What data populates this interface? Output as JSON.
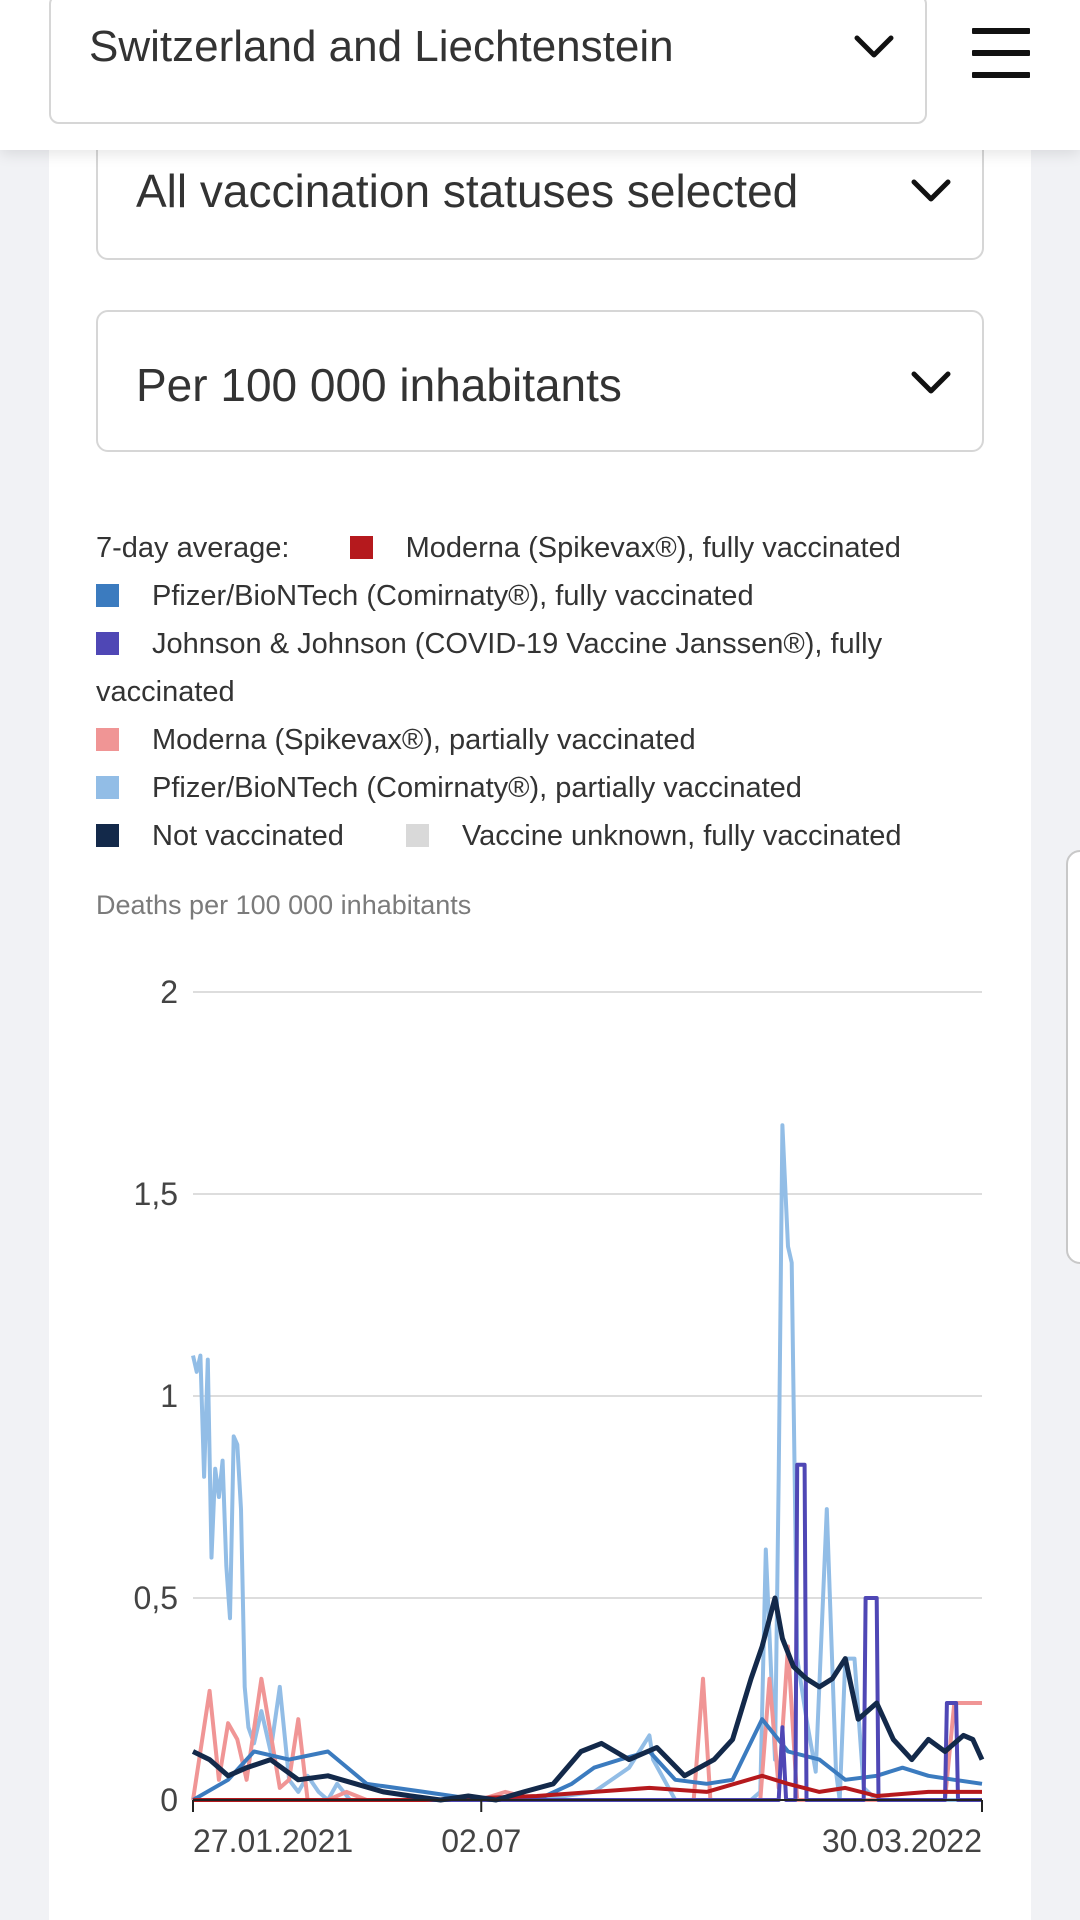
{
  "header": {
    "region_label": "Switzerland and Liechtenstein"
  },
  "filters": {
    "status_label": "All vaccination statuses selected",
    "unit_label": "Per 100 000 inhabitants"
  },
  "legend": {
    "prefix": "7-day average:",
    "items": [
      {
        "label": "Moderna (Spikevax®), fully vaccinated",
        "color": "#b5191d"
      },
      {
        "label": "Pfizer/BioNTech (Comirnaty®), fully vaccinated",
        "color": "#3b7bbf"
      },
      {
        "label": "Johnson & Johnson (COVID-19 Vaccine Janssen®), fully",
        "label_cont": "vaccinated",
        "color": "#4f47b5"
      },
      {
        "label": "Moderna (Spikevax®), partially vaccinated",
        "color": "#f09595"
      },
      {
        "label": "Pfizer/BioNTech (Comirnaty®), partially vaccinated",
        "color": "#92bde6"
      },
      {
        "label": "Not vaccinated",
        "color": "#13294a"
      },
      {
        "label": "Vaccine unknown, fully vaccinated",
        "color": "#d9d9d9"
      }
    ]
  },
  "chart_data": {
    "type": "line",
    "ylabel": "Deaths per 100 000 inhabitants",
    "ylim": [
      0,
      2
    ],
    "y_ticks": [
      "0",
      "0,5",
      "1",
      "1,5",
      "2"
    ],
    "x_tick_labels": [
      "27.01.2021",
      "02.07",
      "30.03.2022"
    ],
    "x_range": [
      "2021-01-27",
      "2022-03-30"
    ],
    "grid": true,
    "series": [
      {
        "name": "Pfizer/BioNTech (Comirnaty®), partially vaccinated",
        "color": "#92bde6",
        "x": [
          "2021-01-27",
          "2021-01-29",
          "2021-01-31",
          "2021-02-02",
          "2021-02-04",
          "2021-02-06",
          "2021-02-08",
          "2021-02-10",
          "2021-02-12",
          "2021-02-14",
          "2021-02-16",
          "2021-02-18",
          "2021-02-20",
          "2021-02-22",
          "2021-02-24",
          "2021-02-26",
          "2021-03-01",
          "2021-03-05",
          "2021-03-10",
          "2021-03-15",
          "2021-03-20",
          "2021-03-25",
          "2021-03-30",
          "2021-04-05",
          "2021-04-10",
          "2021-04-15",
          "2021-04-22",
          "2021-05-01",
          "2021-05-15",
          "2021-06-01",
          "2021-07-01",
          "2021-08-01",
          "2021-09-01",
          "2021-09-20",
          "2021-10-01",
          "2021-10-03",
          "2021-10-15",
          "2021-11-01",
          "2021-11-15",
          "2021-11-25",
          "2021-11-30",
          "2021-12-03",
          "2021-12-06",
          "2021-12-08",
          "2021-12-10",
          "2021-12-12",
          "2021-12-15",
          "2021-12-17",
          "2021-12-20",
          "2021-12-25",
          "2021-12-30",
          "2022-01-05",
          "2022-01-10",
          "2022-01-12",
          "2022-01-15",
          "2022-01-20",
          "2022-01-25",
          "2022-02-01",
          "2022-02-10",
          "2022-02-20",
          "2022-02-25",
          "2022-03-01",
          "2022-03-05",
          "2022-03-10",
          "2022-03-15",
          "2022-03-20",
          "2022-03-25",
          "2022-03-30"
        ],
        "values": [
          1.1,
          1.06,
          1.1,
          0.8,
          1.09,
          0.6,
          0.82,
          0.75,
          0.84,
          0.58,
          0.45,
          0.9,
          0.88,
          0.72,
          0.28,
          0.18,
          0.14,
          0.22,
          0.12,
          0.28,
          0.05,
          0.02,
          0.06,
          0.02,
          0.0,
          0.04,
          0.0,
          0.0,
          0.0,
          0.0,
          0.0,
          0.0,
          0.02,
          0.08,
          0.16,
          0.1,
          0.0,
          0.0,
          0.0,
          0.0,
          0.02,
          0.62,
          0.3,
          0.1,
          0.8,
          1.67,
          1.37,
          1.33,
          0.35,
          0.2,
          0.07,
          0.72,
          0.07,
          0.0,
          0.35,
          0.35,
          0.03,
          0.0,
          0.0,
          0.0,
          0.0,
          0.0,
          0.0,
          0.0,
          0.0,
          0.0,
          0.0,
          0.0
        ]
      },
      {
        "name": "Moderna (Spikevax®), partially vaccinated",
        "color": "#f09595",
        "x": [
          "2021-01-27",
          "2021-02-05",
          "2021-02-10",
          "2021-02-15",
          "2021-02-20",
          "2021-02-25",
          "2021-03-05",
          "2021-03-15",
          "2021-03-20",
          "2021-03-25",
          "2021-03-30",
          "2021-04-10",
          "2021-04-20",
          "2021-05-01",
          "2021-06-01",
          "2021-07-01",
          "2021-07-15",
          "2021-08-01",
          "2021-09-01",
          "2021-10-01",
          "2021-10-25",
          "2021-10-30",
          "2021-11-03",
          "2021-11-10",
          "2021-11-20",
          "2021-11-30",
          "2021-12-05",
          "2021-12-10",
          "2021-12-15",
          "2021-12-20",
          "2022-01-01",
          "2022-01-15",
          "2022-02-01",
          "2022-02-15",
          "2022-03-01",
          "2022-03-10",
          "2022-03-15",
          "2022-03-20",
          "2022-03-30"
        ],
        "values": [
          0.0,
          0.27,
          0.05,
          0.19,
          0.15,
          0.05,
          0.3,
          0.03,
          0.05,
          0.2,
          0.0,
          0.0,
          0.02,
          0.0,
          0.0,
          0.0,
          0.02,
          0.0,
          0.0,
          0.0,
          0.0,
          0.3,
          0.0,
          0.0,
          0.0,
          0.0,
          0.3,
          0.03,
          0.38,
          0.0,
          0.0,
          0.0,
          0.0,
          0.0,
          0.0,
          0.0,
          0.24,
          0.24,
          0.24
        ]
      },
      {
        "name": "Pfizer/BioNTech (Comirnaty®), fully vaccinated",
        "color": "#3b7bbf",
        "x": [
          "2021-01-27",
          "2021-02-15",
          "2021-03-01",
          "2021-03-20",
          "2021-04-10",
          "2021-05-01",
          "2021-06-01",
          "2021-07-01",
          "2021-08-01",
          "2021-08-20",
          "2021-09-01",
          "2021-09-15",
          "2021-10-01",
          "2021-10-15",
          "2021-11-01",
          "2021-11-15",
          "2021-12-01",
          "2021-12-15",
          "2022-01-01",
          "2022-01-15",
          "2022-02-01",
          "2022-02-15",
          "2022-03-01",
          "2022-03-15",
          "2022-03-30"
        ],
        "values": [
          0.0,
          0.05,
          0.12,
          0.1,
          0.12,
          0.04,
          0.02,
          0.0,
          0.0,
          0.04,
          0.08,
          0.1,
          0.12,
          0.05,
          0.04,
          0.05,
          0.2,
          0.12,
          0.1,
          0.05,
          0.06,
          0.08,
          0.06,
          0.05,
          0.04
        ]
      },
      {
        "name": "Johnson & Johnson (COVID-19 Vaccine Janssen®), fully vaccinated",
        "color": "#4f47b5",
        "x": [
          "2021-01-27",
          "2021-12-10",
          "2021-12-12",
          "2021-12-14",
          "2021-12-19",
          "2021-12-20",
          "2021-12-24",
          "2021-12-25",
          "2022-01-25",
          "2022-01-26",
          "2022-02-01",
          "2022-02-02",
          "2022-03-10",
          "2022-03-11",
          "2022-03-16",
          "2022-03-17",
          "2022-03-30"
        ],
        "values": [
          0.0,
          0.0,
          0.18,
          0.0,
          0.0,
          0.83,
          0.83,
          0.0,
          0.0,
          0.5,
          0.5,
          0.0,
          0.0,
          0.24,
          0.24,
          0.0,
          0.0
        ]
      },
      {
        "name": "Moderna (Spikevax®), fully vaccinated",
        "color": "#b5191d",
        "x": [
          "2021-01-27",
          "2021-06-01",
          "2021-08-01",
          "2021-09-01",
          "2021-10-01",
          "2021-11-01",
          "2021-12-01",
          "2021-12-15",
          "2022-01-01",
          "2022-01-15",
          "2022-02-01",
          "2022-03-01",
          "2022-03-30"
        ],
        "values": [
          0.0,
          0.0,
          0.01,
          0.02,
          0.03,
          0.02,
          0.06,
          0.04,
          0.02,
          0.03,
          0.01,
          0.02,
          0.02
        ]
      },
      {
        "name": "Not vaccinated",
        "color": "#13294a",
        "x": [
          "2021-01-27",
          "2021-02-05",
          "2021-02-15",
          "2021-02-25",
          "2021-03-10",
          "2021-03-25",
          "2021-04-10",
          "2021-04-25",
          "2021-05-10",
          "2021-05-25",
          "2021-06-10",
          "2021-06-25",
          "2021-07-10",
          "2021-07-25",
          "2021-08-10",
          "2021-08-25",
          "2021-09-05",
          "2021-09-20",
          "2021-10-05",
          "2021-10-20",
          "2021-11-05",
          "2021-11-15",
          "2021-11-25",
          "2021-12-01",
          "2021-12-08",
          "2021-12-12",
          "2021-12-18",
          "2021-12-25",
          "2022-01-01",
          "2022-01-08",
          "2022-01-15",
          "2022-01-22",
          "2022-02-01",
          "2022-02-10",
          "2022-02-20",
          "2022-03-01",
          "2022-03-10",
          "2022-03-20",
          "2022-03-25",
          "2022-03-30"
        ],
        "values": [
          0.12,
          0.1,
          0.06,
          0.08,
          0.1,
          0.05,
          0.06,
          0.04,
          0.02,
          0.01,
          0.0,
          0.01,
          0.0,
          0.02,
          0.04,
          0.12,
          0.14,
          0.1,
          0.13,
          0.06,
          0.1,
          0.15,
          0.3,
          0.38,
          0.5,
          0.4,
          0.33,
          0.3,
          0.28,
          0.3,
          0.35,
          0.2,
          0.24,
          0.15,
          0.1,
          0.15,
          0.12,
          0.16,
          0.15,
          0.1
        ]
      }
    ]
  }
}
